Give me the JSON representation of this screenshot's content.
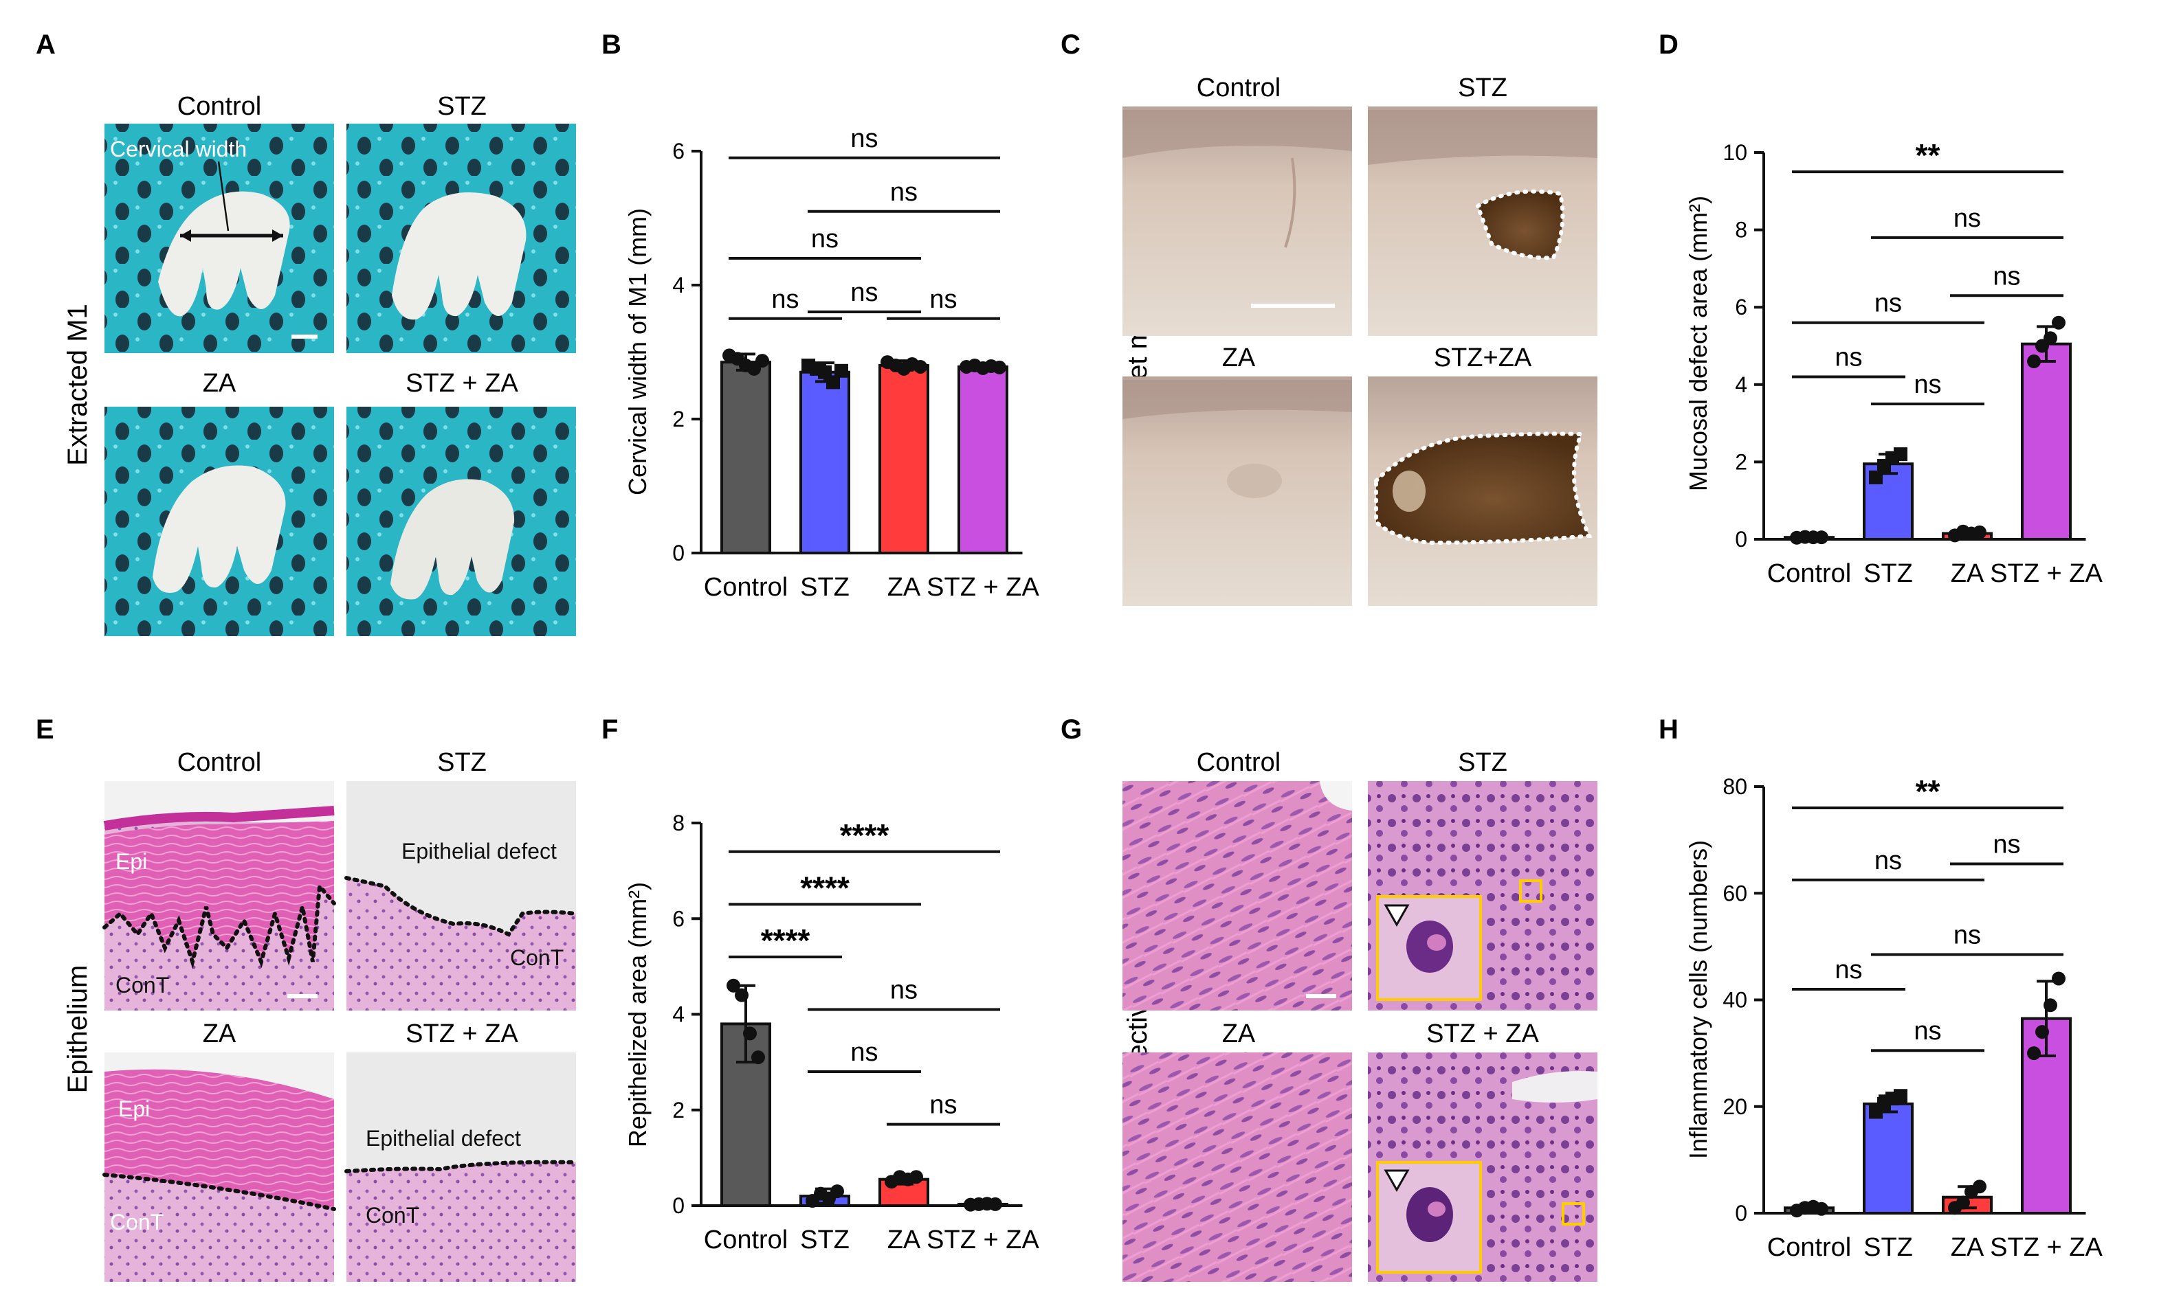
{
  "colors": {
    "control": "#595959",
    "stz": "#5a5cff",
    "za": "#ff3b3b",
    "stz_za": "#c94fe0",
    "teal_bg": "#2bb6c5",
    "tooth": "#eeeeea",
    "mucosa": "#d9cabd",
    "defect": "#6a4320",
    "he_pink": "#e38fc2",
    "he_purple": "#8c4fa7",
    "inset_frame": "#ffcc00"
  },
  "panels": {
    "A": {
      "letter": "A",
      "side_label": "Extracted M1",
      "titles": [
        "Control",
        "STZ",
        "ZA",
        "STZ + ZA"
      ],
      "annotation": "Cervical width"
    },
    "C": {
      "letter": "C",
      "side_label": "Socket mucosa",
      "titles": [
        "Control",
        "STZ",
        "ZA",
        "STZ+ZA"
      ]
    },
    "E": {
      "letter": "E",
      "side_label": "Epithelium",
      "titles": [
        "Control",
        "STZ",
        "ZA",
        "STZ + ZA"
      ],
      "labels": {
        "epi": "Epi",
        "cont": "ConT",
        "defect": "Epithelial defect"
      }
    },
    "G": {
      "letter": "G",
      "side_label": "Connective tissue",
      "titles": [
        "Control",
        "STZ",
        "ZA",
        "STZ + ZA"
      ]
    }
  },
  "chart_data": [
    {
      "panel": "B",
      "type": "bar",
      "categories": [
        "Control",
        "STZ",
        "ZA",
        "STZ + ZA"
      ],
      "values": [
        2.85,
        2.7,
        2.8,
        2.78
      ],
      "errors": [
        0.12,
        0.14,
        0.07,
        0.04
      ],
      "points": [
        [
          2.95,
          2.9,
          2.8,
          2.75,
          2.87
        ],
        [
          2.8,
          2.75,
          2.7,
          2.55,
          2.72
        ],
        [
          2.85,
          2.8,
          2.75,
          2.82,
          2.78
        ],
        [
          2.78,
          2.8,
          2.76,
          2.79,
          2.77
        ]
      ],
      "ylabel": "Cervical width of M1 (mm)",
      "ylim": [
        0,
        6
      ],
      "yticks": [
        0,
        2,
        4,
        6
      ],
      "comparisons": [
        {
          "a": 0,
          "b": 3,
          "y": 5.9,
          "text": "ns"
        },
        {
          "a": 1,
          "b": 3,
          "y": 5.1,
          "text": "ns"
        },
        {
          "a": 0,
          "b": 2,
          "y": 4.4,
          "text": "ns"
        },
        {
          "a": 0,
          "b": 1,
          "y": 3.5,
          "text": "ns"
        },
        {
          "a": 1,
          "b": 2,
          "y": 3.6,
          "text": "ns"
        },
        {
          "a": 2,
          "b": 3,
          "y": 3.5,
          "text": "ns"
        }
      ]
    },
    {
      "panel": "D",
      "type": "bar",
      "categories": [
        "Control",
        "STZ",
        "ZA",
        "STZ + ZA"
      ],
      "values": [
        0.05,
        1.95,
        0.15,
        5.05
      ],
      "errors": [
        0.03,
        0.25,
        0.05,
        0.45
      ],
      "points": [
        [
          0.04,
          0.06,
          0.05,
          0.05
        ],
        [
          1.6,
          1.9,
          2.1,
          2.2
        ],
        [
          0.1,
          0.2,
          0.15,
          0.18
        ],
        [
          4.6,
          5.0,
          5.2,
          5.6
        ]
      ],
      "ylabel": "Mucosal defect area (mm²)",
      "ylim": [
        0,
        10
      ],
      "yticks": [
        0,
        2,
        4,
        6,
        8,
        10
      ],
      "comparisons": [
        {
          "a": 0,
          "b": 3,
          "y": 9.5,
          "text": "**"
        },
        {
          "a": 1,
          "b": 3,
          "y": 7.8,
          "text": "ns"
        },
        {
          "a": 0,
          "b": 2,
          "y": 5.6,
          "text": "ns"
        },
        {
          "a": 2,
          "b": 3,
          "y": 6.3,
          "text": "ns"
        },
        {
          "a": 0,
          "b": 1,
          "y": 4.2,
          "text": "ns"
        },
        {
          "a": 1,
          "b": 2,
          "y": 3.5,
          "text": "ns"
        }
      ]
    },
    {
      "panel": "F",
      "type": "bar",
      "categories": [
        "Control",
        "STZ",
        "ZA",
        "STZ + ZA"
      ],
      "values": [
        3.8,
        0.2,
        0.55,
        0.03
      ],
      "errors": [
        0.8,
        0.15,
        0.1,
        0.02
      ],
      "points": [
        [
          4.6,
          4.4,
          3.6,
          3.1
        ],
        [
          0.1,
          0.25,
          0.15,
          0.3
        ],
        [
          0.5,
          0.6,
          0.55,
          0.6
        ],
        [
          0.02,
          0.03,
          0.04,
          0.03
        ]
      ],
      "ylabel": "Repithelized area (mm²)",
      "ylim": [
        0,
        8
      ],
      "yticks": [
        0,
        2,
        4,
        6,
        8
      ],
      "comparisons": [
        {
          "a": 0,
          "b": 3,
          "y": 7.4,
          "text": "****"
        },
        {
          "a": 0,
          "b": 2,
          "y": 6.3,
          "text": "****"
        },
        {
          "a": 0,
          "b": 1,
          "y": 5.2,
          "text": "****"
        },
        {
          "a": 1,
          "b": 3,
          "y": 4.1,
          "text": "ns"
        },
        {
          "a": 1,
          "b": 2,
          "y": 2.8,
          "text": "ns"
        },
        {
          "a": 2,
          "b": 3,
          "y": 1.7,
          "text": "ns"
        }
      ]
    },
    {
      "panel": "H",
      "type": "bar",
      "categories": [
        "Control",
        "STZ",
        "ZA",
        "STZ + ZA"
      ],
      "values": [
        1,
        20.5,
        3,
        36.5
      ],
      "errors": [
        0.7,
        1.5,
        2,
        7
      ],
      "points": [
        [
          0.5,
          1,
          1.2,
          0.8
        ],
        [
          19,
          20.5,
          21.5,
          22
        ],
        [
          1,
          2,
          4,
          5
        ],
        [
          30,
          34,
          39,
          44
        ]
      ],
      "ylabel": "Inflammatory cells (numbers)",
      "ylim": [
        0,
        80
      ],
      "yticks": [
        0,
        20,
        40,
        60,
        80
      ],
      "comparisons": [
        {
          "a": 0,
          "b": 3,
          "y": 76,
          "text": "**"
        },
        {
          "a": 0,
          "b": 2,
          "y": 62.5,
          "text": "ns"
        },
        {
          "a": 2,
          "b": 3,
          "y": 65.5,
          "text": "ns"
        },
        {
          "a": 1,
          "b": 3,
          "y": 48.5,
          "text": "ns"
        },
        {
          "a": 0,
          "b": 1,
          "y": 42,
          "text": "ns"
        },
        {
          "a": 1,
          "b": 2,
          "y": 30.5,
          "text": "ns"
        }
      ]
    }
  ]
}
